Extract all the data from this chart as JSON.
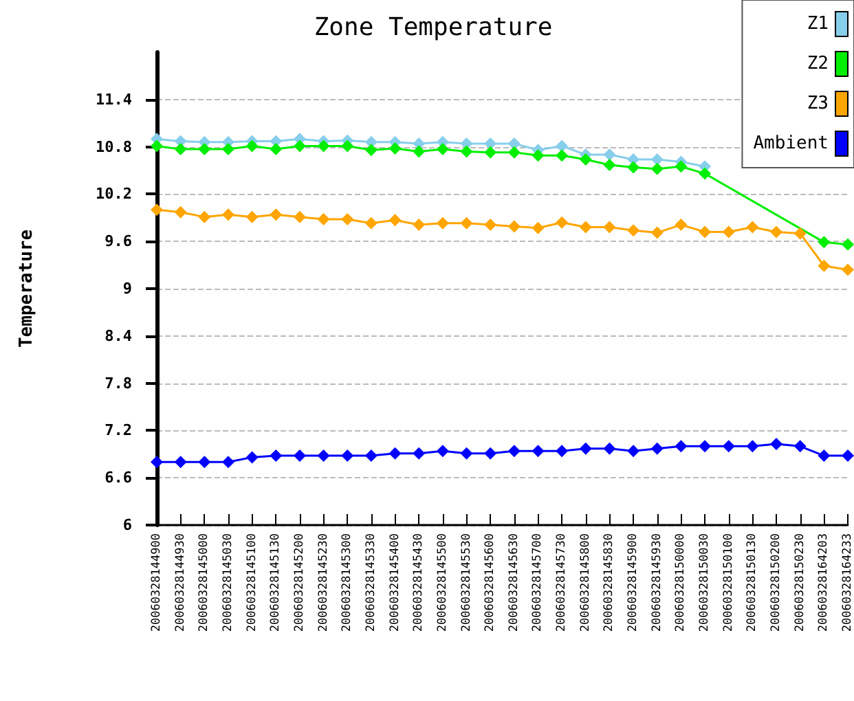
{
  "chart_data": {
    "type": "line",
    "title": "Zone Temperature",
    "ylabel": "Temperature",
    "categories": [
      "20060328144900",
      "20060328144930",
      "20060328145000",
      "20060328145030",
      "20060328145100",
      "20060328145130",
      "20060328145200",
      "20060328145230",
      "20060328145300",
      "20060328145330",
      "20060328145400",
      "20060328145430",
      "20060328145500",
      "20060328145530",
      "20060328145600",
      "20060328145630",
      "20060328145700",
      "20060328145730",
      "20060328145800",
      "20060328145830",
      "20060328145900",
      "20060328145930",
      "20060328150000",
      "20060328150030",
      "20060328150100",
      "20060328150130",
      "20060328150200",
      "20060328150230",
      "20060328164203",
      "20060328164233"
    ],
    "series": [
      {
        "name": "Z1",
        "color": "#87ceeb",
        "values": [
          10.9,
          10.87,
          10.86,
          10.86,
          10.87,
          10.87,
          10.9,
          10.87,
          10.88,
          10.86,
          10.86,
          10.84,
          10.86,
          10.84,
          10.84,
          10.84,
          10.76,
          10.81,
          10.7,
          10.7,
          10.64,
          10.64,
          10.61,
          10.55,
          null,
          null,
          null,
          null,
          null,
          null
        ]
      },
      {
        "name": "Z2",
        "color": "#00ee00",
        "values": [
          10.81,
          10.77,
          10.77,
          10.77,
          10.81,
          10.77,
          10.81,
          10.81,
          10.81,
          10.76,
          10.78,
          10.74,
          10.77,
          10.74,
          10.73,
          10.73,
          10.69,
          10.69,
          10.64,
          10.57,
          10.54,
          10.52,
          10.55,
          10.46,
          null,
          null,
          null,
          null,
          9.59,
          9.56
        ]
      },
      {
        "name": "Z3",
        "color": "#ffa500",
        "values": [
          10.0,
          9.97,
          9.91,
          9.94,
          9.91,
          9.94,
          9.91,
          9.88,
          9.88,
          9.83,
          9.87,
          9.81,
          9.83,
          9.83,
          9.81,
          9.79,
          9.77,
          9.84,
          9.78,
          9.78,
          9.74,
          9.71,
          9.81,
          9.72,
          9.72,
          9.78,
          9.72,
          9.7,
          9.29,
          9.24
        ]
      },
      {
        "name": "Ambient",
        "color": "#0000ff",
        "values": [
          6.8,
          6.8,
          6.8,
          6.8,
          6.86,
          6.88,
          6.88,
          6.88,
          6.88,
          6.88,
          6.91,
          6.91,
          6.94,
          6.91,
          6.91,
          6.94,
          6.94,
          6.94,
          6.97,
          6.97,
          6.94,
          6.97,
          7.0,
          7.0,
          7.0,
          7.0,
          7.03,
          7.0,
          6.88,
          6.88
        ]
      }
    ],
    "ylim": [
      6,
      12
    ],
    "yticks": [
      6,
      6.6,
      7.2,
      7.8,
      8.4,
      9,
      9.6,
      10.2,
      10.8,
      11.4
    ],
    "grid": "y",
    "legend": "top right",
    "marker": "diamond",
    "line_style": "solid"
  }
}
